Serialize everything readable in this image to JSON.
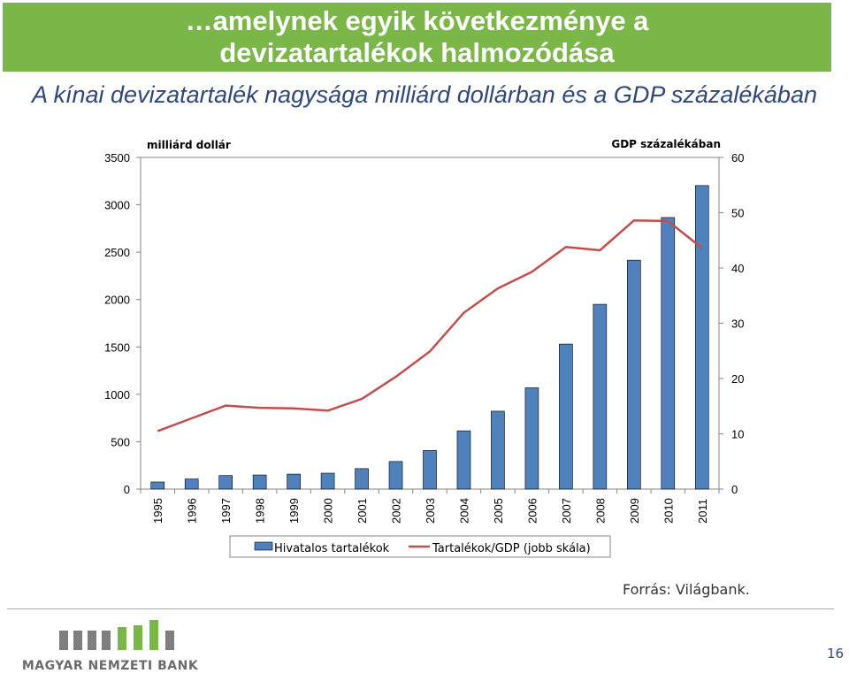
{
  "slide": {
    "title": "…amelynek egyik következménye a devizatartalékok halmozódása",
    "subtitle": "A kínai devizatartalék nagysága milliárd dollárban és a GDP százalékában",
    "source": "Forrás: Világbank.",
    "page_number": "16",
    "logo_text": "MAGYAR NEMZETI BANK"
  },
  "colors": {
    "banner": "#7ab648",
    "bar": "#4f81bd",
    "line": "#c0504d",
    "subtitle": "#2f4779",
    "logo_gray": "#7f7f7f",
    "logo_green": "#7ab648"
  },
  "chart_data": {
    "type": "bar",
    "categories": [
      "1995",
      "1996",
      "1997",
      "1998",
      "1999",
      "2000",
      "2001",
      "2002",
      "2003",
      "2004",
      "2005",
      "2006",
      "2007",
      "2008",
      "2009",
      "2010",
      "2011"
    ],
    "series": [
      {
        "name": "Hivatalos tartalékok",
        "type": "bar",
        "axis": "left",
        "values": [
          75,
          107,
          143,
          149,
          158,
          168,
          216,
          291,
          408,
          615,
          822,
          1069,
          1530,
          1950,
          2416,
          2866,
          3203
        ]
      },
      {
        "name": "Tartalékok/GDP (jobb skála)",
        "type": "line",
        "axis": "right",
        "values": [
          10.5,
          12.8,
          15.1,
          14.7,
          14.6,
          14.2,
          16.3,
          20.3,
          24.9,
          31.9,
          36.3,
          39.3,
          43.8,
          43.2,
          48.6,
          48.5,
          43.6
        ]
      }
    ],
    "ylabel": "milliárd dollár",
    "y2label": "GDP százalékában",
    "ylim": [
      0,
      3500
    ],
    "y2lim": [
      0,
      60
    ],
    "yticks": [
      "0",
      "500",
      "1000",
      "1500",
      "2000",
      "2500",
      "3000",
      "3500"
    ],
    "y2ticks": [
      "0",
      "10",
      "20",
      "30",
      "40",
      "50",
      "60"
    ],
    "grid": false,
    "legend_position": "bottom",
    "legend": [
      "Hivatalos tartalékok",
      "Tartalékok/GDP (jobb skála)"
    ]
  }
}
